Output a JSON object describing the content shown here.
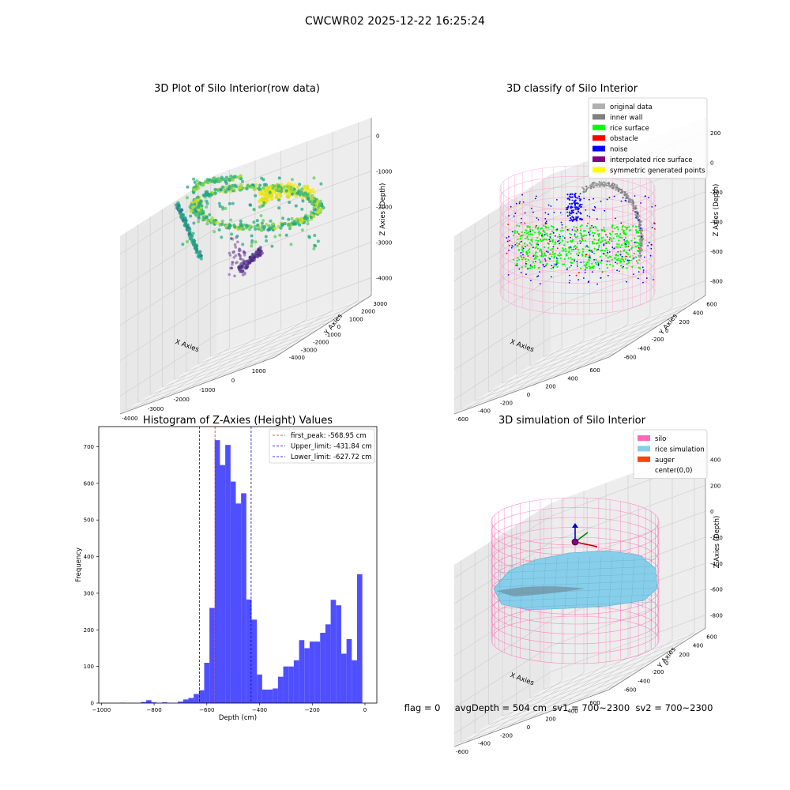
{
  "suptitle": "CWCWR02 2025-12-22 16:25:24",
  "status_line": "flag = 0     avgDepth = 504 cm  sv1 = 700~2300  sv2 = 700~2300",
  "colors": {
    "hist_bar": "#4f4fff",
    "first_peak": "#d62728",
    "limits": "#0000cc",
    "silo_wire": "#ff69b4",
    "rice": "#87ceeb",
    "auger": "#ff4500"
  },
  "chart_data": [
    {
      "type": "scatter3d",
      "title": "3D Plot of Silo Interior(row data)",
      "xlabel": "X Axies",
      "ylabel": "Y Axies",
      "zlabel": "Z Axies (Depth)",
      "x_ticks": [
        "-4000",
        "-3000",
        "-2000",
        "-1000",
        "0",
        "1000"
      ],
      "y_ticks": [
        "-4000",
        "-3000",
        "-2000",
        "-1000",
        "0",
        "1000",
        "2000",
        "3000"
      ],
      "z_ticks": [
        "-4000",
        "-3000",
        "-2000",
        "-1000",
        "0"
      ],
      "colormap": "viridis",
      "grid": true
    },
    {
      "type": "scatter3d",
      "title": "3D classify of Silo Interior",
      "xlabel": "X Axies",
      "ylabel": "Y Axies",
      "zlabel": "Z Axies (Depth)",
      "x_ticks": [
        "-600",
        "-400",
        "-200",
        "0",
        "200",
        "400",
        "600"
      ],
      "y_ticks": [
        "-600",
        "-400",
        "-200",
        "0",
        "200",
        "400",
        "600"
      ],
      "z_ticks": [
        "-800",
        "-600",
        "-400",
        "-200",
        "0",
        "200"
      ],
      "legend": {
        "placement": "top-right",
        "items": [
          {
            "label": "original data",
            "color": "#b0b0b0"
          },
          {
            "label": "inner wall",
            "color": "#808080"
          },
          {
            "label": "rice surface",
            "color": "#00ff00"
          },
          {
            "label": "obstacle",
            "color": "#ff0000"
          },
          {
            "label": "noise",
            "color": "#0000ff"
          },
          {
            "label": "interpolated rice surface",
            "color": "#800080"
          },
          {
            "label": "symmetric generated points",
            "color": "#ffff00"
          }
        ]
      },
      "grid": true
    },
    {
      "type": "bar",
      "title": "Histogram of Z-Axies (Height) Values",
      "xlabel": "Depth (cm)",
      "ylabel": "Frequency",
      "xlim": [
        -1010,
        45
      ],
      "ylim": [
        0,
        755
      ],
      "x_ticks": [
        -1000,
        -800,
        -600,
        -400,
        -200,
        0
      ],
      "y_ticks": [
        0,
        100,
        200,
        300,
        400,
        500,
        600,
        700
      ],
      "bin_width": 20,
      "bins": [
        {
          "x": -920,
          "v": 1
        },
        {
          "x": -840,
          "v": 3
        },
        {
          "x": -820,
          "v": 8
        },
        {
          "x": -800,
          "v": 2
        },
        {
          "x": -760,
          "v": 2
        },
        {
          "x": -700,
          "v": 4
        },
        {
          "x": -680,
          "v": 10
        },
        {
          "x": -660,
          "v": 14
        },
        {
          "x": -640,
          "v": 25
        },
        {
          "x": -620,
          "v": 35
        },
        {
          "x": -600,
          "v": 110
        },
        {
          "x": -580,
          "v": 260
        },
        {
          "x": -560,
          "v": 718
        },
        {
          "x": -540,
          "v": 650
        },
        {
          "x": -520,
          "v": 705
        },
        {
          "x": -500,
          "v": 605
        },
        {
          "x": -480,
          "v": 545
        },
        {
          "x": -460,
          "v": 573
        },
        {
          "x": -440,
          "v": 283
        },
        {
          "x": -420,
          "v": 228
        },
        {
          "x": -400,
          "v": 78
        },
        {
          "x": -380,
          "v": 37
        },
        {
          "x": -360,
          "v": 37
        },
        {
          "x": -340,
          "v": 40
        },
        {
          "x": -320,
          "v": 72
        },
        {
          "x": -300,
          "v": 100
        },
        {
          "x": -280,
          "v": 100
        },
        {
          "x": -260,
          "v": 117
        },
        {
          "x": -240,
          "v": 172
        },
        {
          "x": -220,
          "v": 150
        },
        {
          "x": -200,
          "v": 168
        },
        {
          "x": -180,
          "v": 168
        },
        {
          "x": -160,
          "v": 192
        },
        {
          "x": -140,
          "v": 215
        },
        {
          "x": -120,
          "v": 282
        },
        {
          "x": -100,
          "v": 267
        },
        {
          "x": -80,
          "v": 135
        },
        {
          "x": -60,
          "v": 175
        },
        {
          "x": -40,
          "v": 117
        },
        {
          "x": -20,
          "v": 352
        }
      ],
      "vlines": [
        {
          "label": "first_peak: -568.95 cm",
          "x": -568.95,
          "color": "#d62728"
        },
        {
          "label": "Upper_limit: -431.84 cm",
          "x": -431.84,
          "color": "#0000cc"
        },
        {
          "label": "Lower_limit: -627.72 cm",
          "x": -627.72,
          "color": "#0000cc"
        }
      ],
      "legend_placement": "top-right",
      "grid": false
    },
    {
      "type": "surface3d",
      "title": "3D simulation of Silo Interior",
      "xlabel": "X Axies",
      "ylabel": "Y Axies",
      "zlabel": "Z Axies (Depth)",
      "x_ticks": [
        "-600",
        "-400",
        "-200",
        "0",
        "200",
        "400",
        "600"
      ],
      "y_ticks": [
        "-600",
        "-400",
        "-200",
        "0",
        "200",
        "400",
        "600"
      ],
      "z_ticks": [
        "-800",
        "-600",
        "-400",
        "-200",
        "0",
        "200",
        "400"
      ],
      "legend": {
        "placement": "top-right",
        "items": [
          {
            "label": "silo",
            "color": "#ff69b4"
          },
          {
            "label": "rice simulation",
            "color": "#87ceeb"
          },
          {
            "label": "auger",
            "color": "#ff4500"
          },
          {
            "label": "center(0,0)",
            "color": ""
          }
        ]
      },
      "grid": true
    }
  ]
}
